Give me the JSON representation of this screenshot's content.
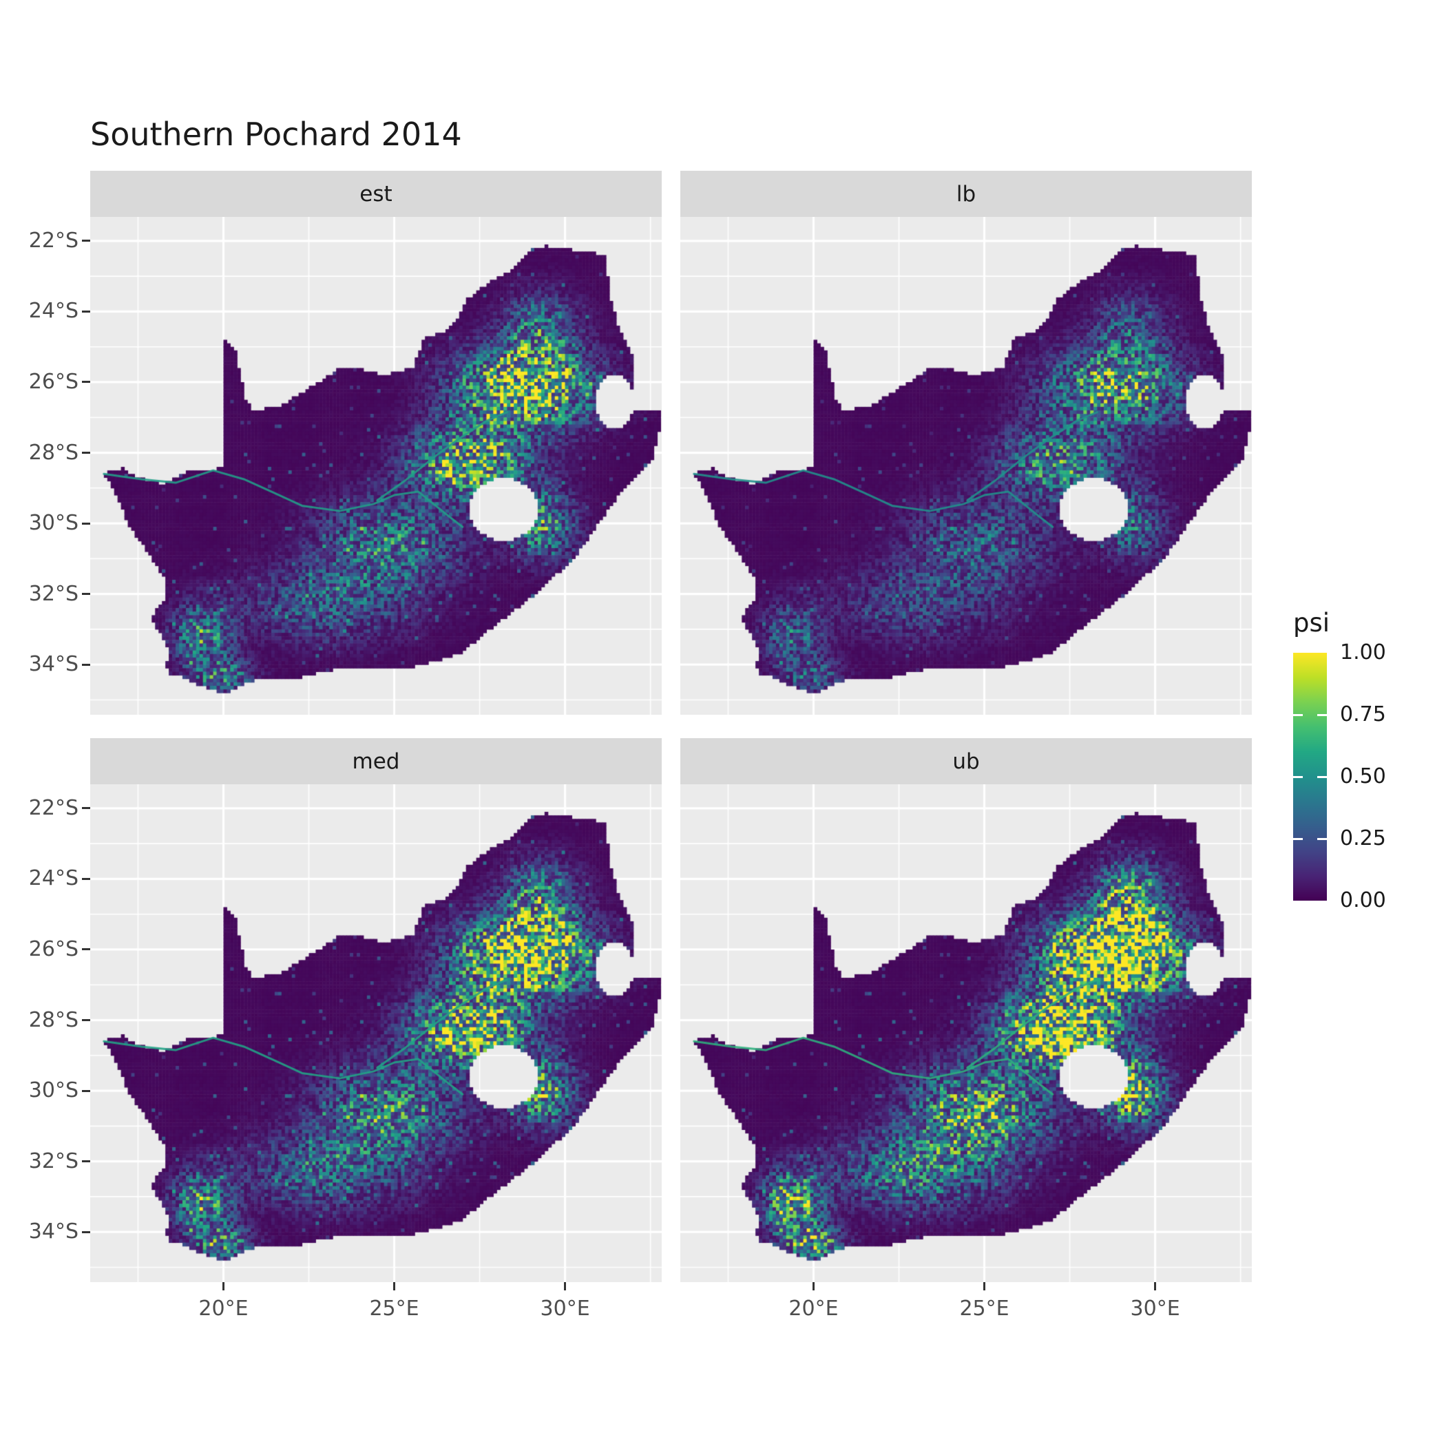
{
  "chart_data": {
    "type": "heatmap",
    "title": "Southern Pochard 2014",
    "region": "South Africa",
    "facets": [
      "est",
      "lb",
      "med",
      "ub"
    ],
    "facet_multipliers": [
      1.0,
      0.68,
      1.18,
      1.55
    ],
    "legend": {
      "title": "psi",
      "tick_labels": [
        "1.00",
        "0.75",
        "0.50",
        "0.25",
        "0.00"
      ],
      "tick_values": [
        1.0,
        0.75,
        0.5,
        0.25,
        0.0
      ],
      "bar_tick_values": [
        0.25,
        0.5,
        0.75
      ]
    },
    "x_axis": {
      "ticks": [
        {
          "label": "20°E",
          "value": 20
        },
        {
          "label": "25°E",
          "value": 25
        },
        {
          "label": "30°E",
          "value": 30
        }
      ],
      "minor": [
        17.5,
        22.5,
        27.5,
        32.5
      ]
    },
    "y_axis": {
      "ticks": [
        {
          "label": "22°S",
          "value": -22
        },
        {
          "label": "24°S",
          "value": -24
        },
        {
          "label": "26°S",
          "value": -26
        },
        {
          "label": "28°S",
          "value": -28
        },
        {
          "label": "30°S",
          "value": -30
        },
        {
          "label": "32°S",
          "value": -32
        },
        {
          "label": "34°S",
          "value": -34
        }
      ],
      "minor": [
        -23,
        -25,
        -27,
        -29,
        -31,
        -33,
        -35
      ]
    },
    "lon_range": [
      16.1,
      32.83
    ],
    "lat_range": [
      -21.32,
      -35.42
    ],
    "cell_deg": 0.1,
    "panel_bg": "#ebebeb",
    "strip_bg": "#d9d9d9",
    "grid_color": "#ffffff",
    "colormap": {
      "name": "viridis",
      "stops": [
        {
          "t": 0.0,
          "c": "#440154"
        },
        {
          "t": 0.1,
          "c": "#482475"
        },
        {
          "t": 0.2,
          "c": "#414487"
        },
        {
          "t": 0.3,
          "c": "#355f8d"
        },
        {
          "t": 0.4,
          "c": "#2a788e"
        },
        {
          "t": 0.5,
          "c": "#21918c"
        },
        {
          "t": 0.6,
          "c": "#22a884"
        },
        {
          "t": 0.7,
          "c": "#44bf70"
        },
        {
          "t": 0.8,
          "c": "#7ad151"
        },
        {
          "t": 0.9,
          "c": "#bddf26"
        },
        {
          "t": 1.0,
          "c": "#fde725"
        }
      ]
    },
    "outline": [
      [
        16.45,
        -28.6
      ],
      [
        17.05,
        -28.45
      ],
      [
        17.45,
        -28.7
      ],
      [
        18.2,
        -28.88
      ],
      [
        19.0,
        -28.5
      ],
      [
        19.6,
        -28.5
      ],
      [
        19.98,
        -28.42
      ],
      [
        19.98,
        -24.77
      ],
      [
        20.35,
        -25.1
      ],
      [
        20.65,
        -26.5
      ],
      [
        20.9,
        -26.82
      ],
      [
        21.7,
        -26.65
      ],
      [
        22.6,
        -26.12
      ],
      [
        22.9,
        -25.95
      ],
      [
        23.45,
        -25.55
      ],
      [
        23.95,
        -25.62
      ],
      [
        24.75,
        -25.8
      ],
      [
        25.55,
        -25.6
      ],
      [
        25.9,
        -24.72
      ],
      [
        26.45,
        -24.6
      ],
      [
        26.85,
        -24.25
      ],
      [
        27.15,
        -23.65
      ],
      [
        27.75,
        -23.2
      ],
      [
        28.3,
        -22.9
      ],
      [
        29.05,
        -22.2
      ],
      [
        29.45,
        -22.15
      ],
      [
        29.95,
        -22.22
      ],
      [
        30.65,
        -22.3
      ],
      [
        31.2,
        -22.4
      ],
      [
        31.3,
        -23.5
      ],
      [
        31.55,
        -24.35
      ],
      [
        31.95,
        -25.15
      ],
      [
        31.98,
        -25.95
      ],
      [
        32.05,
        -26.8
      ],
      [
        32.88,
        -26.85
      ],
      [
        32.55,
        -28.2
      ],
      [
        31.8,
        -28.9
      ],
      [
        31.05,
        -29.9
      ],
      [
        30.3,
        -30.95
      ],
      [
        29.2,
        -31.95
      ],
      [
        28.0,
        -32.85
      ],
      [
        26.9,
        -33.7
      ],
      [
        25.65,
        -34.05
      ],
      [
        24.5,
        -34.15
      ],
      [
        23.35,
        -34.1
      ],
      [
        22.15,
        -34.4
      ],
      [
        21.0,
        -34.4
      ],
      [
        20.0,
        -34.82
      ],
      [
        19.35,
        -34.6
      ],
      [
        18.85,
        -34.35
      ],
      [
        18.45,
        -34.3
      ],
      [
        18.3,
        -34.05
      ],
      [
        18.42,
        -33.7
      ],
      [
        18.15,
        -33.1
      ],
      [
        17.85,
        -32.7
      ],
      [
        18.3,
        -32.1
      ],
      [
        18.25,
        -31.5
      ],
      [
        17.7,
        -30.7
      ],
      [
        17.2,
        -30.0
      ],
      [
        16.95,
        -29.4
      ],
      [
        16.7,
        -28.9
      ]
    ],
    "holes": [
      {
        "name": "Lesotho",
        "cx": 28.2,
        "cy": -29.6,
        "rx": 1.02,
        "ry": 0.88
      },
      {
        "name": "Eswatini",
        "cx": 31.45,
        "cy": -26.55,
        "rx": 0.58,
        "ry": 0.75
      }
    ],
    "rivers": [
      [
        [
          16.5,
          -28.6
        ],
        [
          17.6,
          -28.75
        ],
        [
          18.6,
          -28.85
        ],
        [
          19.7,
          -28.5
        ],
        [
          20.6,
          -28.75
        ],
        [
          21.4,
          -29.1
        ],
        [
          22.3,
          -29.5
        ],
        [
          23.4,
          -29.65
        ],
        [
          24.4,
          -29.45
        ],
        [
          25.0,
          -29.2
        ],
        [
          25.7,
          -29.1
        ],
        [
          26.6,
          -29.8
        ],
        [
          27.0,
          -30.1
        ]
      ],
      [
        [
          24.5,
          -29.35
        ],
        [
          25.3,
          -28.8
        ],
        [
          26.2,
          -28.1
        ],
        [
          26.9,
          -27.6
        ],
        [
          27.7,
          -27.1
        ],
        [
          28.3,
          -26.85
        ]
      ]
    ],
    "intensity_blobs": [
      {
        "lon": 28.8,
        "lat": -26.2,
        "sx": 1.8,
        "sy": 1.05,
        "a": 1.05
      },
      {
        "lon": 29.3,
        "lat": -24.6,
        "sx": 1.0,
        "sy": 1.0,
        "a": 0.45
      },
      {
        "lon": 27.2,
        "lat": -28.3,
        "sx": 1.6,
        "sy": 1.0,
        "a": 0.8
      },
      {
        "lon": 29.3,
        "lat": -30.0,
        "sx": 0.9,
        "sy": 0.9,
        "a": 0.55
      },
      {
        "lon": 24.8,
        "lat": -30.6,
        "sx": 1.9,
        "sy": 1.2,
        "a": 0.45
      },
      {
        "lon": 23.0,
        "lat": -32.3,
        "sx": 2.2,
        "sy": 1.0,
        "a": 0.3
      },
      {
        "lon": 19.4,
        "lat": -33.2,
        "sx": 0.8,
        "sy": 0.9,
        "a": 0.5
      },
      {
        "lon": 20.0,
        "lat": -34.3,
        "sx": 0.8,
        "sy": 0.4,
        "a": 0.45
      }
    ]
  }
}
